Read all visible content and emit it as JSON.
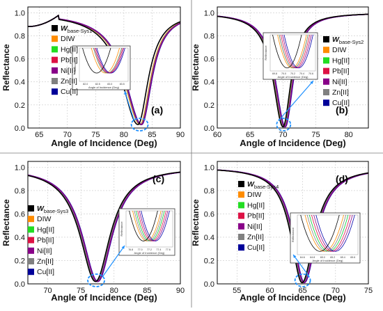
{
  "palette": {
    "dip_series": [
      "#000000",
      "#FF8C00",
      "#00CC33",
      "#DD1144",
      "#880088",
      "#808080",
      "#0000AA"
    ],
    "legend_swatches": [
      "#000000",
      "#FF8C00",
      "#22DD22",
      "#DD1144",
      "#880088",
      "#808080",
      "#000099"
    ],
    "highlight_circle": "#1E90FF",
    "inset_arrow": "#1E90FF"
  },
  "chart_data": [
    {
      "panel": "(a)",
      "type": "line",
      "xlabel": "Angle of Incidence (Deg)",
      "ylabel": "Reflectance",
      "xlim": [
        63,
        90
      ],
      "ylim": [
        0,
        1.05
      ],
      "xticks": [
        "65",
        "70",
        "75",
        "80",
        "85",
        "90"
      ],
      "yticks": [
        "0.0",
        "0.2",
        "0.4",
        "0.6",
        "0.8",
        "1.0"
      ],
      "grid": true,
      "legend_position": "right-middle",
      "legend": [
        {
          "main": "W",
          "sub": "base-Sys1"
        },
        {
          "main": "DIW",
          "sub": ""
        },
        {
          "main": "Hg[II]",
          "sub": ""
        },
        {
          "main": "Pb[II]",
          "sub": ""
        },
        {
          "main": "Ni[II]",
          "sub": ""
        },
        {
          "main": "Zn[II]",
          "sub": ""
        },
        {
          "main": "Cu[II]",
          "sub": ""
        }
      ],
      "critical_angle": 68.5,
      "critical_reflectance": 0.98,
      "min_reflectance": 0.03,
      "resonance_angles": [
        82.5,
        82.9,
        83.0,
        83.05,
        83.1,
        83.0,
        83.15
      ],
      "inset": {
        "xlabel": "Angle of Incidence (Deg)",
        "ylabel": "Reflectance",
        "xticks": [
          "82.0",
          "82.5",
          "83.0",
          "83.5"
        ]
      }
    },
    {
      "panel": "(b)",
      "type": "line",
      "xlabel": "Angle of Incidence (Deg)",
      "ylabel": "Reflectance",
      "xlim": [
        60,
        83
      ],
      "ylim": [
        0,
        1.05
      ],
      "xticks": [
        "60",
        "65",
        "70",
        "75",
        "80"
      ],
      "yticks": [
        "0.0",
        "0.2",
        "0.4",
        "0.6",
        "0.8",
        "1.0"
      ],
      "grid": true,
      "legend_position": "right-middle",
      "legend": [
        {
          "main": "W",
          "sub": "base-Sys2"
        },
        {
          "main": "DIW",
          "sub": ""
        },
        {
          "main": "Hg[II]",
          "sub": ""
        },
        {
          "main": "Pb[II]",
          "sub": ""
        },
        {
          "main": "Ni[II]",
          "sub": ""
        },
        {
          "main": "Zn[II]",
          "sub": ""
        },
        {
          "main": "Cu[II]",
          "sub": ""
        }
      ],
      "min_reflectance": 0.01,
      "resonance_angles": [
        70.0,
        70.15,
        70.2,
        70.25,
        70.3,
        70.2,
        70.35
      ],
      "inset": {
        "xlabel": "Angle of Incidence (Deg)",
        "ylabel": "Reflectance",
        "xticks": [
          "69.8",
          "70.0",
          "70.2",
          "70.4",
          "70.6"
        ]
      }
    },
    {
      "panel": "(c)",
      "type": "line",
      "xlabel": "Angle of Incidence (Deg)",
      "ylabel": "Reflectance",
      "xlim": [
        67,
        90
      ],
      "ylim": [
        0,
        1.05
      ],
      "xticks": [
        "70",
        "75",
        "80",
        "85",
        "90"
      ],
      "yticks": [
        "0.0",
        "0.2",
        "0.4",
        "0.6",
        "0.8",
        "1.0"
      ],
      "grid": true,
      "legend_position": "bottom-left",
      "legend": [
        {
          "main": "W",
          "sub": "base-Sys3"
        },
        {
          "main": "DIW",
          "sub": ""
        },
        {
          "main": "Hg[II]",
          "sub": ""
        },
        {
          "main": "Pb[II]",
          "sub": ""
        },
        {
          "main": "Ni[II]",
          "sub": ""
        },
        {
          "main": "Zn[II]",
          "sub": ""
        },
        {
          "main": "Cu[II]",
          "sub": ""
        }
      ],
      "min_reflectance": 0.02,
      "resonance_angles": [
        77.2,
        77.3,
        77.4,
        77.45,
        77.5,
        77.35,
        77.55
      ],
      "inset": {
        "xlabel": "Angle of Incidence (Deg)",
        "ylabel": "Reflectance",
        "xticks": [
          "76.8",
          "77.0",
          "77.2",
          "77.4",
          "77.6"
        ]
      }
    },
    {
      "panel": "(d)",
      "type": "line",
      "xlabel": "Angle of Incidence (Deg)",
      "ylabel": "Reflectance",
      "xlim": [
        52,
        75
      ],
      "ylim": [
        0,
        1.05
      ],
      "xticks": [
        "55",
        "60",
        "65",
        "70",
        "75"
      ],
      "yticks": [
        "0.0",
        "0.2",
        "0.4",
        "0.6",
        "0.8",
        "1.0"
      ],
      "grid": true,
      "legend_position": "left-middle",
      "legend": [
        {
          "main": "W",
          "sub": "base-Sys4"
        },
        {
          "main": "DIW",
          "sub": ""
        },
        {
          "main": "Hg[II]",
          "sub": ""
        },
        {
          "main": "Pb[II]",
          "sub": ""
        },
        {
          "main": "Ni[II]",
          "sub": ""
        },
        {
          "main": "Zn[II]",
          "sub": ""
        },
        {
          "main": "Cu[II]",
          "sub": ""
        }
      ],
      "min_reflectance": 0.01,
      "resonance_angles": [
        64.9,
        65.0,
        65.1,
        65.15,
        65.2,
        65.05,
        65.25
      ],
      "inset": {
        "xlabel": "Angle of Incidence (Deg)",
        "ylabel": "Reflectance",
        "xticks": [
          "64.6",
          "64.8",
          "65.0",
          "65.2",
          "65.4",
          "65.6"
        ]
      }
    }
  ]
}
